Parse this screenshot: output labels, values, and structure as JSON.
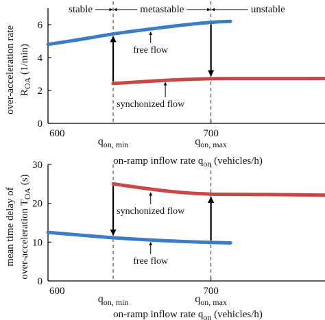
{
  "chart_data": [
    {
      "id": "top",
      "type": "line",
      "xlabel_parts": [
        "on-ramp inflow rate q",
        "on",
        " (vehicles/h)"
      ],
      "ylabel_line1": "over-acceleration rate",
      "ylabel_line2_parts": [
        "R",
        "OA",
        " (1/min)"
      ],
      "xlim": [
        600,
        770
      ],
      "ylim": [
        0,
        7
      ],
      "xticks": [
        600,
        700
      ],
      "yticks": [
        0,
        2,
        4,
        6
      ],
      "regimes": [
        "stable",
        "metastable",
        "unstable"
      ],
      "boundaries": [
        {
          "x": 640,
          "label_main": "q",
          "label_sub": "on, min"
        },
        {
          "x": 700,
          "label_main": "q",
          "label_sub": "on, max"
        }
      ],
      "series": [
        {
          "color": "#3a7cc6",
          "points": [
            [
              600,
              4.8
            ],
            [
              620,
              5.1
            ],
            [
              640,
              5.45
            ],
            [
              660,
              5.7
            ],
            [
              680,
              5.95
            ],
            [
              700,
              6.15
            ],
            [
              712,
              6.2
            ]
          ]
        },
        {
          "color": "#c94747",
          "points": [
            [
              640,
              2.42
            ],
            [
              660,
              2.55
            ],
            [
              680,
              2.66
            ],
            [
              700,
              2.72
            ],
            [
              720,
              2.73
            ],
            [
              750,
              2.72
            ],
            [
              770,
              2.73
            ]
          ]
        }
      ],
      "arrows": [
        {
          "x": 640,
          "from": 2.42,
          "to": 5.45,
          "direction": "up"
        },
        {
          "x": 700,
          "from": 6.15,
          "to": 2.72,
          "direction": "down"
        }
      ],
      "annotations": [
        {
          "text": "free flow",
          "x": 663,
          "y": 4.3,
          "arrow_to": [
            663,
            5.68
          ]
        },
        {
          "text": "synchonized flow",
          "x": 663,
          "y": 1.0,
          "arrow_to": [
            672,
            2.62
          ]
        }
      ]
    },
    {
      "id": "bottom",
      "type": "line",
      "xlabel_parts": [
        "on-ramp inflow rate q",
        "on",
        " (vehicles/h)"
      ],
      "ylabel_line1": "mean time delay of",
      "ylabel_line2_parts": [
        "over-acceleration T",
        "OA",
        " (s)"
      ],
      "xlim": [
        600,
        770
      ],
      "ylim": [
        0,
        30
      ],
      "xticks": [
        600,
        700
      ],
      "yticks": [
        0,
        10,
        20,
        30
      ],
      "boundaries": [
        {
          "x": 640,
          "label_main": "q",
          "label_sub": "on, min"
        },
        {
          "x": 700,
          "label_main": "q",
          "label_sub": "on, max"
        }
      ],
      "series": [
        {
          "color": "#c94747",
          "points": [
            [
              640,
              25.0
            ],
            [
              660,
              23.8
            ],
            [
              680,
              22.8
            ],
            [
              700,
              22.3
            ],
            [
              720,
              22.3
            ],
            [
              750,
              22.2
            ],
            [
              770,
              22.1
            ]
          ]
        },
        {
          "color": "#3a7cc6",
          "points": [
            [
              600,
              12.5
            ],
            [
              620,
              11.8
            ],
            [
              640,
              11.1
            ],
            [
              660,
              10.6
            ],
            [
              680,
              10.2
            ],
            [
              700,
              9.9
            ],
            [
              712,
              9.8
            ]
          ]
        }
      ],
      "arrows": [
        {
          "x": 640,
          "from": 25.0,
          "to": 11.1,
          "direction": "down"
        },
        {
          "x": 700,
          "from": 9.9,
          "to": 22.3,
          "direction": "up"
        }
      ],
      "annotations": [
        {
          "text": "synchonized flow",
          "x": 663,
          "y": 17.3,
          "arrow_to": [
            663,
            23.3
          ]
        },
        {
          "text": "free flow",
          "x": 663,
          "y": 4.4,
          "arrow_to": [
            663,
            10.5
          ]
        }
      ]
    }
  ]
}
